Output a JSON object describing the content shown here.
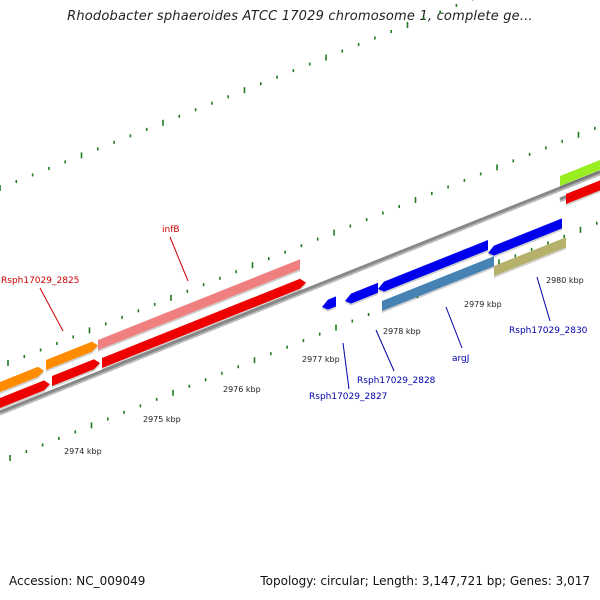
{
  "title": "Rhodobacter sphaeroides ATCC 17029 chromosome 1, complete ge...",
  "footer": {
    "accession": "Accession: NC_009049",
    "summary": "Topology: circular; Length: 3,147,721 bp; Genes: 3,017"
  },
  "scale_labels": [
    "2974 kbp",
    "2975 kbp",
    "2976 kbp",
    "2977 kbp",
    "2978 kbp",
    "2979 kbp",
    "2980 kbp"
  ],
  "gene_labels": [
    "Rsph17029_2825",
    "infB",
    "Rsph17029_2827",
    "Rsph17029_2828",
    "argJ",
    "Rsph17029_2830"
  ],
  "colors": {
    "orange": "#ff8c00",
    "red": "#ee0000",
    "pink": "#f08080",
    "blue": "#0000ee",
    "steelblue": "#4682b4",
    "olive": "#b5b06a",
    "lime": "#99ee22",
    "axis": "#888888",
    "tick": "#1e7b1e",
    "red_label": "#cc0000",
    "blue_label": "#0000aa"
  }
}
